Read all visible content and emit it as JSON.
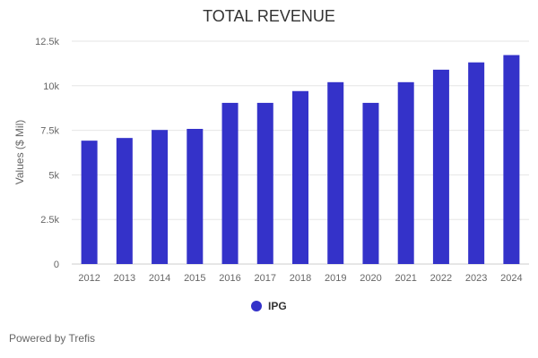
{
  "chart_data": {
    "type": "bar",
    "title": "TOTAL REVENUE",
    "xlabel": "",
    "ylabel": "Values ($ Mil)",
    "ylim": [
      0,
      12500
    ],
    "yticks": [
      0,
      2500,
      5000,
      7500,
      10000,
      12500
    ],
    "ytick_labels": [
      "0",
      "2.5k",
      "5k",
      "7.5k",
      "10k",
      "12.5k"
    ],
    "categories": [
      "2012",
      "2013",
      "2014",
      "2015",
      "2016",
      "2017",
      "2018",
      "2019",
      "2020",
      "2021",
      "2022",
      "2023",
      "2024"
    ],
    "series": [
      {
        "name": "IPG",
        "color": "#3432c9",
        "values": [
          6920,
          7070,
          7520,
          7580,
          9040,
          9040,
          9700,
          10200,
          9040,
          10200,
          10900,
          11310,
          11720
        ]
      }
    ],
    "grid": true,
    "legend": "bottom-center"
  },
  "footer": "Powered by Trefis"
}
